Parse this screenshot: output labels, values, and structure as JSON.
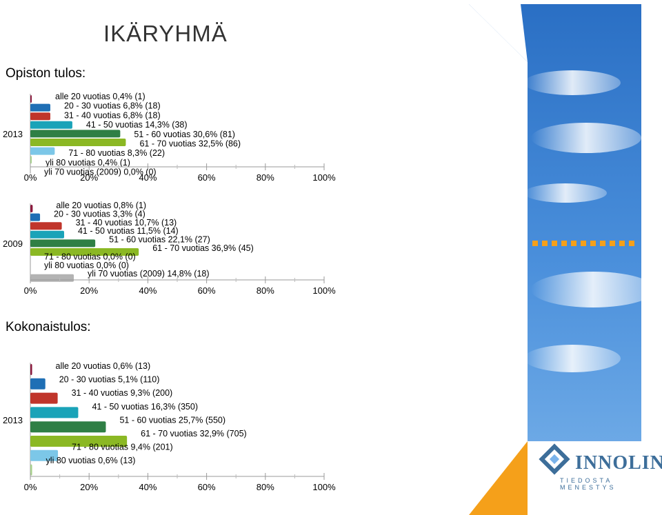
{
  "page": {
    "title": "IKÄRYHMÄ",
    "section1_heading": "Opiston tulos:",
    "section2_heading": "Kokonaistulos:"
  },
  "logo": {
    "name": "INNOLINK",
    "tagline": "TIEDOSTA MENESTYS"
  },
  "colors": {
    "alle20": "#8b1a3e",
    "20_30": "#1f6fb5",
    "31_40": "#c0352b",
    "41_50": "#1aa3b8",
    "51_60": "#2f7f45",
    "61_70": "#8bb824",
    "71_80": "#7cc7e8",
    "yli80": "#a8d08d",
    "yli70_2009": "#b3b3b3",
    "brand_blue": "#3d6e9a",
    "sky_blue": "#2f7fd1"
  },
  "chart_data": [
    {
      "type": "bar",
      "orientation": "horizontal",
      "group_label": "2013",
      "xlim": [
        0,
        100
      ],
      "tick_labels": [
        "0%",
        "20%",
        "40%",
        "60%",
        "80%",
        "100%"
      ],
      "bars": [
        {
          "label": "alle 20 vuotias 0,4% (1)",
          "value": 0.4,
          "color_key": "alle20"
        },
        {
          "label": "20 - 30 vuotias 6,8% (18)",
          "value": 6.8,
          "color_key": "20_30"
        },
        {
          "label": "31 - 40 vuotias 6,8% (18)",
          "value": 6.8,
          "color_key": "31_40"
        },
        {
          "label": "41 - 50 vuotias 14,3% (38)",
          "value": 14.3,
          "color_key": "41_50"
        },
        {
          "label": "51 - 60 vuotias 30,6% (81)",
          "value": 30.6,
          "color_key": "51_60"
        },
        {
          "label": "61 - 70 vuotias 32,5% (86)",
          "value": 32.5,
          "color_key": "61_70"
        },
        {
          "label": "71 - 80 vuotias 8,3% (22)",
          "value": 8.3,
          "color_key": "71_80"
        },
        {
          "label": "yli 80 vuotias 0,4% (1)",
          "value": 0.4,
          "color_key": "yli80"
        },
        {
          "label": "yli 70 vuotias (2009) 0,0% (0)",
          "value": 0.0,
          "color_key": "yli70_2009"
        }
      ]
    },
    {
      "type": "bar",
      "orientation": "horizontal",
      "group_label": "2009",
      "xlim": [
        0,
        100
      ],
      "tick_labels": [
        "0%",
        "20%",
        "40%",
        "60%",
        "80%",
        "100%"
      ],
      "bars": [
        {
          "label": "alle 20 vuotias 0,8% (1)",
          "value": 0.8,
          "color_key": "alle20"
        },
        {
          "label": "20 - 30 vuotias 3,3% (4)",
          "value": 3.3,
          "color_key": "20_30"
        },
        {
          "label": "31 - 40 vuotias 10,7% (13)",
          "value": 10.7,
          "color_key": "31_40"
        },
        {
          "label": "41 - 50 vuotias 11,5% (14)",
          "value": 11.5,
          "color_key": "41_50"
        },
        {
          "label": "51 - 60 vuotias 22,1% (27)",
          "value": 22.1,
          "color_key": "51_60"
        },
        {
          "label": "61 - 70 vuotias 36,9% (45)",
          "value": 36.9,
          "color_key": "61_70"
        },
        {
          "label": "71 - 80 vuotias 0,0% (0)",
          "value": 0.0,
          "color_key": "71_80"
        },
        {
          "label": "yli 80 vuotias 0,0% (0)",
          "value": 0.0,
          "color_key": "yli80"
        },
        {
          "label": "yli 70 vuotias (2009) 14,8% (18)",
          "value": 14.8,
          "color_key": "yli70_2009"
        }
      ]
    },
    {
      "type": "bar",
      "orientation": "horizontal",
      "group_label": "2013",
      "xlim": [
        0,
        100
      ],
      "tick_labels": [
        "0%",
        "20%",
        "40%",
        "60%",
        "80%",
        "100%"
      ],
      "bars": [
        {
          "label": "alle 20 vuotias 0,6% (13)",
          "value": 0.6,
          "color_key": "alle20"
        },
        {
          "label": "20 - 30 vuotias 5,1% (110)",
          "value": 5.1,
          "color_key": "20_30"
        },
        {
          "label": "31 - 40 vuotias 9,3% (200)",
          "value": 9.3,
          "color_key": "31_40"
        },
        {
          "label": "41 - 50 vuotias 16,3% (350)",
          "value": 16.3,
          "color_key": "41_50"
        },
        {
          "label": "51 - 60 vuotias 25,7% (550)",
          "value": 25.7,
          "color_key": "51_60"
        },
        {
          "label": "61 - 70 vuotias 32,9% (705)",
          "value": 32.9,
          "color_key": "61_70"
        },
        {
          "label": "71 - 80 vuotias 9,4% (201)",
          "value": 9.4,
          "color_key": "71_80"
        },
        {
          "label": "yli 80 vuotias 0,6% (13)",
          "value": 0.6,
          "color_key": "yli80"
        }
      ]
    }
  ]
}
